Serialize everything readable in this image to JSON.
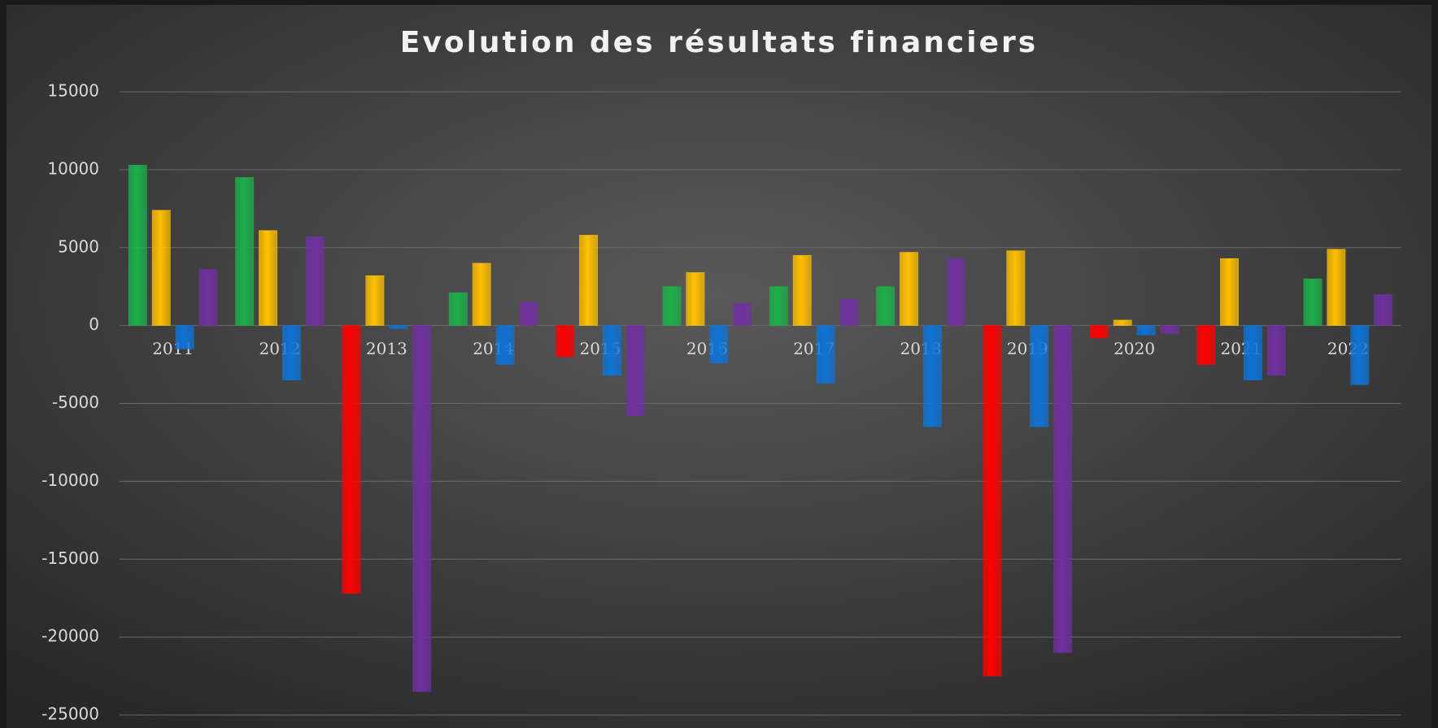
{
  "chart_data": {
    "type": "bar",
    "title": "Evolution des résultats financiers",
    "categories": [
      "2011",
      "2012",
      "2013",
      "2014",
      "2015",
      "2016",
      "2017",
      "2018",
      "2019",
      "2020",
      "2021",
      "2022"
    ],
    "series": [
      {
        "color": "#1db04a",
        "negative_color": "#ff0000",
        "values": [
          10300,
          9500,
          -17200,
          2100,
          -2000,
          2500,
          2500,
          2500,
          -22500,
          -800,
          -2500,
          3000
        ]
      },
      {
        "color": "#ffc000",
        "values": [
          7400,
          6100,
          3200,
          4000,
          5800,
          3400,
          4500,
          4700,
          4800,
          350,
          4300,
          4900
        ]
      },
      {
        "color": "#0f73d6",
        "values": [
          -1500,
          -3500,
          -200,
          -2500,
          -3200,
          -2400,
          -3700,
          -6500,
          -6500,
          -600,
          -3500,
          -3800
        ]
      },
      {
        "color": "#7030a0",
        "values": [
          3600,
          5700,
          -23500,
          1500,
          -5800,
          1400,
          1700,
          4300,
          -21000,
          -500,
          -3200,
          2000
        ]
      }
    ],
    "ylim": [
      -25000,
      15000
    ],
    "yticks": [
      -25000,
      -20000,
      -15000,
      -10000,
      -5000,
      0,
      5000,
      10000,
      15000
    ],
    "grid": true
  }
}
